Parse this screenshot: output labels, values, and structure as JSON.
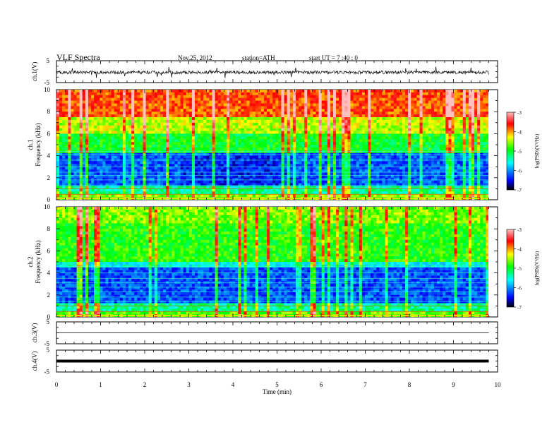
{
  "header": {
    "title": "VLF  Spectra",
    "date": "Nov.25, 2012",
    "station": "station=ATH",
    "start": "start  UT  =   7  :40 : 0"
  },
  "chart_data": [
    {
      "type": "line",
      "panel": "ch1-waveform",
      "ylabel": "ch.1(V)",
      "ylim": [
        -5,
        5
      ],
      "yticks": [
        "5",
        "-5"
      ],
      "description_level": "noisy waveform around -0.5 V with spikes to about +/-2.5 V"
    },
    {
      "type": "heatmap",
      "panel": "ch1-spectrogram",
      "ylabel_channel": "ch.1",
      "ylabel": "Frequency  (kHz)",
      "ylim": [
        0,
        10
      ],
      "yticks": [
        "10",
        "8",
        "6",
        "4",
        "2",
        "0"
      ],
      "colorbar": {
        "label": "log(PSD)(V²/Hz)",
        "ticks": [
          "-3",
          "-4",
          "-5",
          "-6",
          "-7"
        ],
        "range": [
          -7,
          -3
        ]
      }
    },
    {
      "type": "heatmap",
      "panel": "ch2-spectrogram",
      "ylabel_channel": "ch.2",
      "ylabel": "Frequency  (kHz)",
      "ylim": [
        0,
        10
      ],
      "yticks": [
        "10",
        "8",
        "6",
        "4",
        "2",
        "0"
      ],
      "colorbar": {
        "label": "log(PSD)(V²/Hz)",
        "ticks": [
          "-3",
          "-4",
          "-5",
          "-6",
          "-7"
        ],
        "range": [
          -7,
          -3
        ]
      }
    },
    {
      "type": "line",
      "panel": "ch3-waveform",
      "ylabel": "ch.3(V)",
      "ylim": [
        -5,
        5
      ],
      "yticks": [
        "5",
        "-5"
      ],
      "level": 0
    },
    {
      "type": "line",
      "panel": "ch4-waveform",
      "ylabel": "ch.4(V)",
      "ylim": [
        -5,
        5
      ],
      "yticks": [
        "5",
        "-5"
      ],
      "level": 0
    },
    {
      "type": "axis",
      "panel": "time-axis",
      "xlabel": "Time  (min)",
      "xlim": [
        0,
        10
      ],
      "xticks": [
        "0",
        "1",
        "2",
        "3",
        "4",
        "5",
        "6",
        "7",
        "8",
        "9",
        "10"
      ],
      "data_end": 9.8
    }
  ],
  "colors": {
    "colormap": [
      "#000000",
      "#0000ff",
      "#00ffff",
      "#00ff00",
      "#ffff00",
      "#ff0000",
      "#ff8080"
    ]
  }
}
